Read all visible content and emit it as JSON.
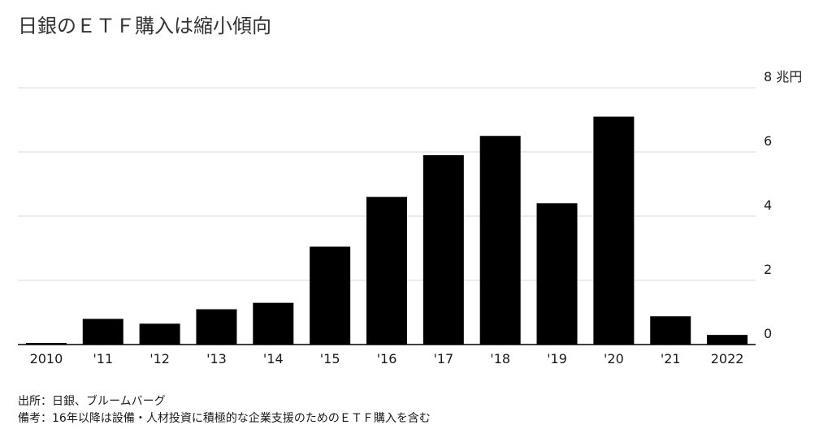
{
  "title": "日銀のＥＴＦ購入は縮小傾向",
  "notes": {
    "source": "出所：日銀、ブルームバーグ",
    "remark": "備考：16年以降は設備・人材投資に積極的な企業支援のためのＥＴＦ購入を含む"
  },
  "colors": {
    "bar": "#000000",
    "grid": "#d9d9d9",
    "axis": "#000000"
  },
  "chart_data": {
    "type": "bar",
    "title": "日銀のＥＴＦ購入は縮小傾向",
    "categories": [
      "2010",
      "'11",
      "'12",
      "'13",
      "'14",
      "'15",
      "'16",
      "'17",
      "'18",
      "'19",
      "'20",
      "'21",
      "2022"
    ],
    "values": [
      0.05,
      0.8,
      0.65,
      1.1,
      1.3,
      3.05,
      4.6,
      5.9,
      6.5,
      4.4,
      7.1,
      0.88,
      0.3
    ],
    "yunit": "兆円",
    "yticks": [
      0,
      2,
      4,
      6,
      8
    ],
    "ytick_labels": [
      "0",
      "2",
      "4",
      "6",
      "8 兆円"
    ],
    "ylim": [
      0,
      8
    ],
    "yaxis_position": "right",
    "grid": true,
    "legend": "none"
  }
}
